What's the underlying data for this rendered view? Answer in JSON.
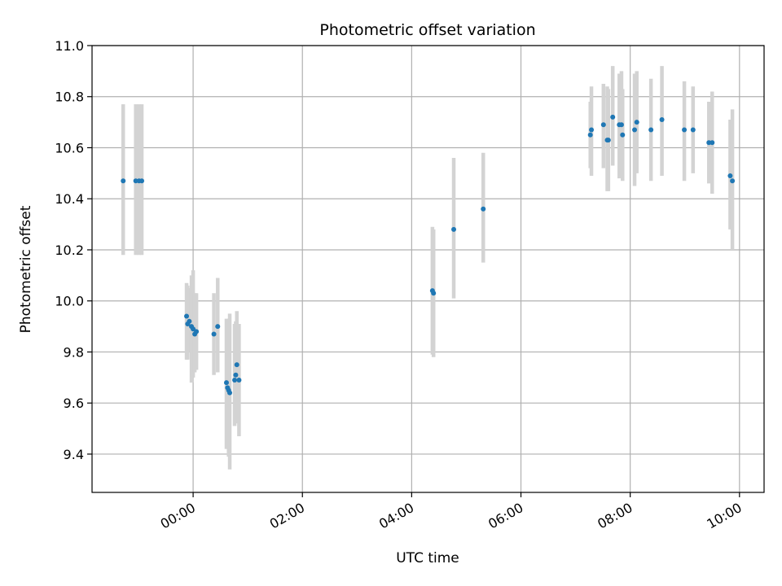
{
  "chart_data": {
    "type": "scatter",
    "title": "Photometric offset variation",
    "xlabel": "UTC time",
    "ylabel": "Photometric offset",
    "x_unit": "hours UTC (negative = before 00:00)",
    "xlim": [
      -1.85,
      10.45
    ],
    "ylim": [
      9.25,
      11.0
    ],
    "xticks": [
      {
        "value": 0,
        "label": "00:00"
      },
      {
        "value": 2,
        "label": "02:00"
      },
      {
        "value": 4,
        "label": "04:00"
      },
      {
        "value": 6,
        "label": "06:00"
      },
      {
        "value": 8,
        "label": "08:00"
      },
      {
        "value": 10,
        "label": "10:00"
      }
    ],
    "yticks": [
      {
        "value": 9.4,
        "label": "9.4"
      },
      {
        "value": 9.6,
        "label": "9.6"
      },
      {
        "value": 9.8,
        "label": "9.8"
      },
      {
        "value": 10.0,
        "label": "10.0"
      },
      {
        "value": 10.2,
        "label": "10.2"
      },
      {
        "value": 10.4,
        "label": "10.4"
      },
      {
        "value": 10.6,
        "label": "10.6"
      },
      {
        "value": 10.8,
        "label": "10.8"
      },
      {
        "value": 11.0,
        "label": "11.0"
      }
    ],
    "grid": true,
    "marker_color": "#1f77b4",
    "errorbar_color": "#d3d3d3",
    "points": [
      {
        "x": -1.28,
        "y": 10.47,
        "lo": 10.18,
        "hi": 10.77
      },
      {
        "x": -1.05,
        "y": 10.47,
        "lo": 10.18,
        "hi": 10.77
      },
      {
        "x": -0.99,
        "y": 10.47,
        "lo": 10.18,
        "hi": 10.77
      },
      {
        "x": -0.94,
        "y": 10.47,
        "lo": 10.18,
        "hi": 10.77
      },
      {
        "x": -0.12,
        "y": 9.94,
        "lo": 9.77,
        "hi": 10.07
      },
      {
        "x": -0.1,
        "y": 9.91,
        "lo": 9.77,
        "hi": 10.06
      },
      {
        "x": -0.07,
        "y": 9.92,
        "lo": 9.8,
        "hi": 10.05
      },
      {
        "x": -0.03,
        "y": 9.9,
        "lo": 9.68,
        "hi": 10.1
      },
      {
        "x": 0.0,
        "y": 9.89,
        "lo": 9.7,
        "hi": 10.12
      },
      {
        "x": 0.03,
        "y": 9.87,
        "lo": 9.72,
        "hi": 10.03
      },
      {
        "x": 0.06,
        "y": 9.88,
        "lo": 9.73,
        "hi": 10.03
      },
      {
        "x": 0.38,
        "y": 9.87,
        "lo": 9.71,
        "hi": 10.03
      },
      {
        "x": 0.45,
        "y": 9.9,
        "lo": 9.72,
        "hi": 10.09
      },
      {
        "x": 0.61,
        "y": 9.68,
        "lo": 9.42,
        "hi": 9.93
      },
      {
        "x": 0.63,
        "y": 9.66,
        "lo": 9.43,
        "hi": 9.9
      },
      {
        "x": 0.65,
        "y": 9.65,
        "lo": 9.39,
        "hi": 9.93
      },
      {
        "x": 0.67,
        "y": 9.64,
        "lo": 9.34,
        "hi": 9.95
      },
      {
        "x": 0.76,
        "y": 9.69,
        "lo": 9.51,
        "hi": 9.91
      },
      {
        "x": 0.78,
        "y": 9.71,
        "lo": 9.52,
        "hi": 9.92
      },
      {
        "x": 0.8,
        "y": 9.75,
        "lo": 9.55,
        "hi": 9.96
      },
      {
        "x": 0.84,
        "y": 9.69,
        "lo": 9.47,
        "hi": 9.91
      },
      {
        "x": 4.38,
        "y": 10.04,
        "lo": 9.79,
        "hi": 10.29
      },
      {
        "x": 4.4,
        "y": 10.03,
        "lo": 9.78,
        "hi": 10.28
      },
      {
        "x": 4.77,
        "y": 10.28,
        "lo": 10.01,
        "hi": 10.56
      },
      {
        "x": 5.31,
        "y": 10.36,
        "lo": 10.15,
        "hi": 10.58
      },
      {
        "x": 7.27,
        "y": 10.65,
        "lo": 10.52,
        "hi": 10.78
      },
      {
        "x": 7.29,
        "y": 10.67,
        "lo": 10.49,
        "hi": 10.84
      },
      {
        "x": 7.51,
        "y": 10.69,
        "lo": 10.52,
        "hi": 10.85
      },
      {
        "x": 7.58,
        "y": 10.63,
        "lo": 10.43,
        "hi": 10.84
      },
      {
        "x": 7.6,
        "y": 10.63,
        "lo": 10.43,
        "hi": 10.83
      },
      {
        "x": 7.68,
        "y": 10.72,
        "lo": 10.53,
        "hi": 10.92
      },
      {
        "x": 7.8,
        "y": 10.69,
        "lo": 10.48,
        "hi": 10.89
      },
      {
        "x": 7.84,
        "y": 10.69,
        "lo": 10.49,
        "hi": 10.9
      },
      {
        "x": 7.86,
        "y": 10.65,
        "lo": 10.47,
        "hi": 10.83
      },
      {
        "x": 8.08,
        "y": 10.67,
        "lo": 10.45,
        "hi": 10.89
      },
      {
        "x": 8.12,
        "y": 10.7,
        "lo": 10.5,
        "hi": 10.9
      },
      {
        "x": 8.38,
        "y": 10.67,
        "lo": 10.47,
        "hi": 10.87
      },
      {
        "x": 8.58,
        "y": 10.71,
        "lo": 10.49,
        "hi": 10.92
      },
      {
        "x": 8.99,
        "y": 10.67,
        "lo": 10.47,
        "hi": 10.86
      },
      {
        "x": 9.15,
        "y": 10.67,
        "lo": 10.5,
        "hi": 10.84
      },
      {
        "x": 9.44,
        "y": 10.62,
        "lo": 10.46,
        "hi": 10.78
      },
      {
        "x": 9.5,
        "y": 10.62,
        "lo": 10.42,
        "hi": 10.82
      },
      {
        "x": 9.83,
        "y": 10.49,
        "lo": 10.28,
        "hi": 10.71
      },
      {
        "x": 9.87,
        "y": 10.47,
        "lo": 10.2,
        "hi": 10.75
      }
    ]
  }
}
